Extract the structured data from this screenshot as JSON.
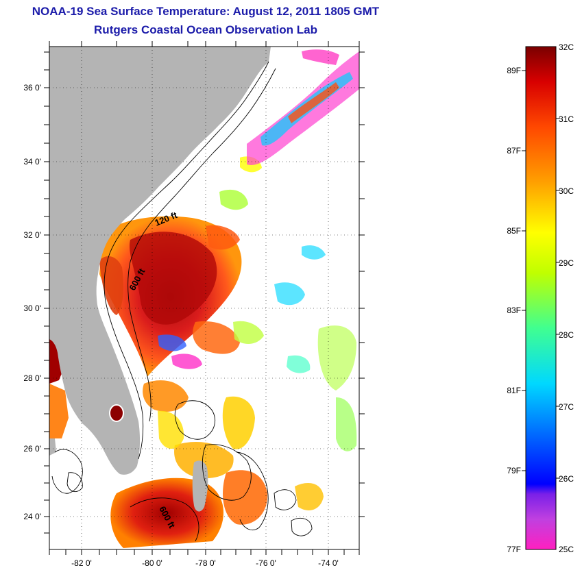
{
  "header": {
    "title": "NOAA-19 Sea Surface Temperature:  August 12, 2011 1805 GMT",
    "subtitle": "Rutgers Coastal Ocean Observation Lab"
  },
  "map": {
    "lat_range": [
      23.0,
      37.2
    ],
    "lon_range": [
      -83.0,
      -73.0
    ],
    "lat_labels": [
      "36 0'",
      "34 0'",
      "32 0'",
      "30 0'",
      "28 0'",
      "26 0'",
      "24 0'"
    ],
    "lon_labels": [
      "-82 0'",
      "-80 0'",
      "-78 0'",
      "-76 0'",
      "-74 0'"
    ],
    "contour_labels": [
      "120 ft",
      "600 ft",
      "600 ft"
    ],
    "land_color": "#b4b4b4",
    "no_data_color": "#ffffff"
  },
  "colorbar": {
    "celsius_labels": [
      "32C",
      "31C",
      "30C",
      "29C",
      "28C",
      "27C",
      "26C",
      "25C"
    ],
    "fahrenheit_labels": [
      "89F",
      "87F",
      "85F",
      "83F",
      "81F",
      "79F",
      "77F"
    ],
    "colors": [
      "#ff20c0",
      "#9a30e0",
      "#0000ff",
      "#0080ff",
      "#00e0ff",
      "#40ff80",
      "#c0ff00",
      "#ffff00",
      "#ffb000",
      "#ff6000",
      "#e01010",
      "#8c0000"
    ]
  }
}
